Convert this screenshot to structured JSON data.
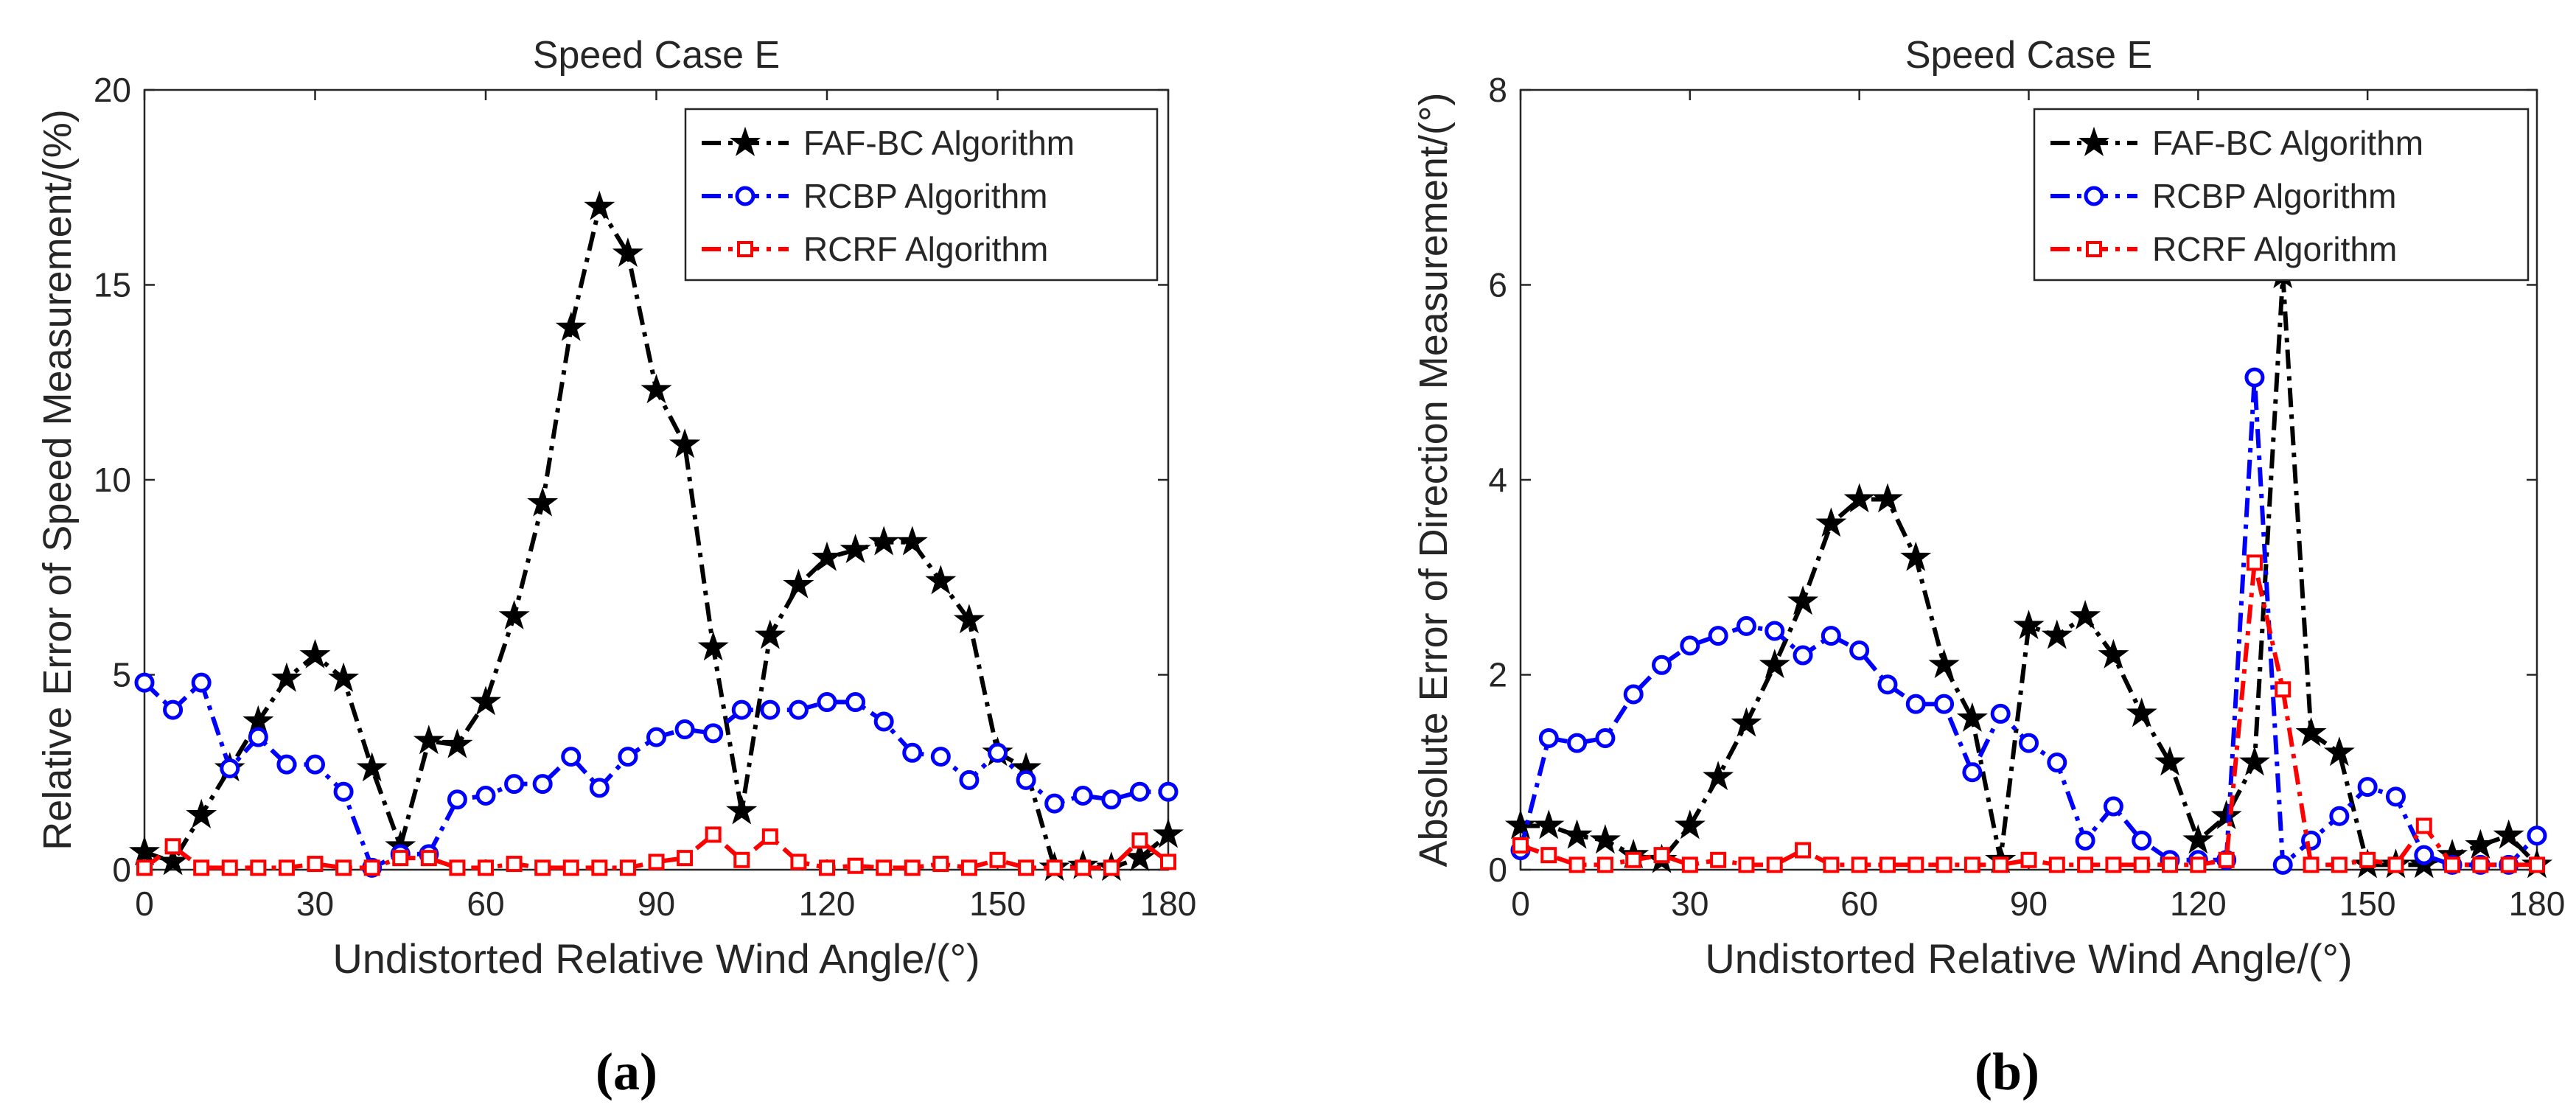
{
  "chart_data": [
    {
      "type": "line",
      "panel_label": "(a)",
      "title": "Speed Case E",
      "xlabel": "Undistorted Relative Wind Angle/(°)",
      "ylabel": "Relative Error of Speed Measurement/(%)",
      "xlim": [
        0,
        180
      ],
      "ylim": [
        0,
        20
      ],
      "xticks": [
        0,
        30,
        60,
        90,
        120,
        150,
        180
      ],
      "yticks": [
        0,
        5,
        10,
        15,
        20
      ],
      "grid": false,
      "legend_position": "top-right",
      "x": [
        0,
        5,
        10,
        15,
        20,
        25,
        30,
        35,
        40,
        45,
        50,
        55,
        60,
        65,
        70,
        75,
        80,
        85,
        90,
        95,
        100,
        105,
        110,
        115,
        120,
        125,
        130,
        135,
        140,
        145,
        150,
        155,
        160,
        165,
        170,
        175,
        180
      ],
      "series": [
        {
          "name": "FAF-BC Algorithm",
          "color": "#000000",
          "marker": "star",
          "values": [
            0.45,
            0.2,
            1.4,
            2.6,
            3.8,
            4.9,
            5.5,
            4.9,
            2.6,
            0.6,
            3.3,
            3.2,
            4.3,
            6.5,
            9.4,
            13.9,
            17.0,
            15.8,
            12.3,
            10.9,
            5.7,
            1.5,
            6.0,
            7.3,
            8.0,
            8.2,
            8.4,
            8.4,
            7.4,
            6.4,
            3.0,
            2.6,
            0.05,
            0.1,
            0.05,
            0.3,
            0.9
          ]
        },
        {
          "name": "RCBP Algorithm",
          "color": "#0000FF",
          "marker": "circle",
          "values": [
            4.8,
            4.1,
            4.8,
            2.6,
            3.4,
            2.7,
            2.7,
            2.0,
            0.05,
            0.4,
            0.4,
            1.8,
            1.9,
            2.2,
            2.2,
            2.9,
            2.1,
            2.9,
            3.4,
            3.6,
            3.5,
            4.1,
            4.1,
            4.1,
            4.3,
            4.3,
            3.8,
            3.0,
            2.9,
            2.3,
            3.0,
            2.3,
            1.7,
            1.9,
            1.8,
            2.0,
            2.0
          ]
        },
        {
          "name": "RCRF Algorithm",
          "color": "#FF0000",
          "marker": "square",
          "values": [
            0.05,
            0.6,
            0.05,
            0.05,
            0.05,
            0.05,
            0.15,
            0.05,
            0.05,
            0.3,
            0.3,
            0.05,
            0.05,
            0.15,
            0.05,
            0.05,
            0.05,
            0.05,
            0.2,
            0.3,
            0.9,
            0.25,
            0.85,
            0.2,
            0.05,
            0.1,
            0.05,
            0.05,
            0.15,
            0.05,
            0.25,
            0.05,
            0.05,
            0.05,
            0.05,
            0.75,
            0.2
          ]
        }
      ]
    },
    {
      "type": "line",
      "panel_label": "(b)",
      "title": "Speed Case E",
      "xlabel": "Undistorted Relative Wind Angle/(°)",
      "ylabel": "Absolute Error of Direction Measurement/(°)",
      "xlim": [
        0,
        180
      ],
      "ylim": [
        0,
        8
      ],
      "xticks": [
        0,
        30,
        60,
        90,
        120,
        150,
        180
      ],
      "yticks": [
        0,
        2,
        4,
        6,
        8
      ],
      "grid": false,
      "legend_position": "top-right",
      "x": [
        0,
        5,
        10,
        15,
        20,
        25,
        30,
        35,
        40,
        45,
        50,
        55,
        60,
        65,
        70,
        75,
        80,
        85,
        90,
        95,
        100,
        105,
        110,
        115,
        120,
        125,
        130,
        135,
        140,
        145,
        150,
        155,
        160,
        165,
        170,
        175,
        180
      ],
      "series": [
        {
          "name": "FAF-BC Algorithm",
          "color": "#000000",
          "marker": "star",
          "values": [
            0.45,
            0.45,
            0.35,
            0.3,
            0.15,
            0.1,
            0.45,
            0.95,
            1.5,
            2.1,
            2.75,
            3.55,
            3.8,
            3.8,
            3.2,
            2.1,
            1.55,
            0.1,
            2.5,
            2.4,
            2.6,
            2.2,
            1.6,
            1.1,
            0.3,
            0.55,
            1.1,
            6.1,
            1.4,
            1.2,
            0.05,
            0.05,
            0.05,
            0.15,
            0.25,
            0.35,
            0.05
          ]
        },
        {
          "name": "RCBP Algorithm",
          "color": "#0000FF",
          "marker": "circle",
          "values": [
            0.2,
            1.35,
            1.3,
            1.35,
            1.8,
            2.1,
            2.3,
            2.4,
            2.5,
            2.45,
            2.2,
            2.4,
            2.25,
            1.9,
            1.7,
            1.7,
            1.0,
            1.6,
            1.3,
            1.1,
            0.3,
            0.65,
            0.3,
            0.1,
            0.1,
            0.1,
            5.05,
            0.05,
            0.3,
            0.55,
            0.85,
            0.75,
            0.15,
            0.05,
            0.05,
            0.05,
            0.35
          ]
        },
        {
          "name": "RCRF Algorithm",
          "color": "#FF0000",
          "marker": "square",
          "values": [
            0.25,
            0.15,
            0.05,
            0.05,
            0.1,
            0.15,
            0.05,
            0.1,
            0.05,
            0.05,
            0.2,
            0.05,
            0.05,
            0.05,
            0.05,
            0.05,
            0.05,
            0.05,
            0.1,
            0.05,
            0.05,
            0.05,
            0.05,
            0.05,
            0.05,
            0.1,
            3.15,
            1.85,
            0.05,
            0.05,
            0.1,
            0.05,
            0.45,
            0.05,
            0.05,
            0.05,
            0.05
          ]
        }
      ]
    }
  ]
}
